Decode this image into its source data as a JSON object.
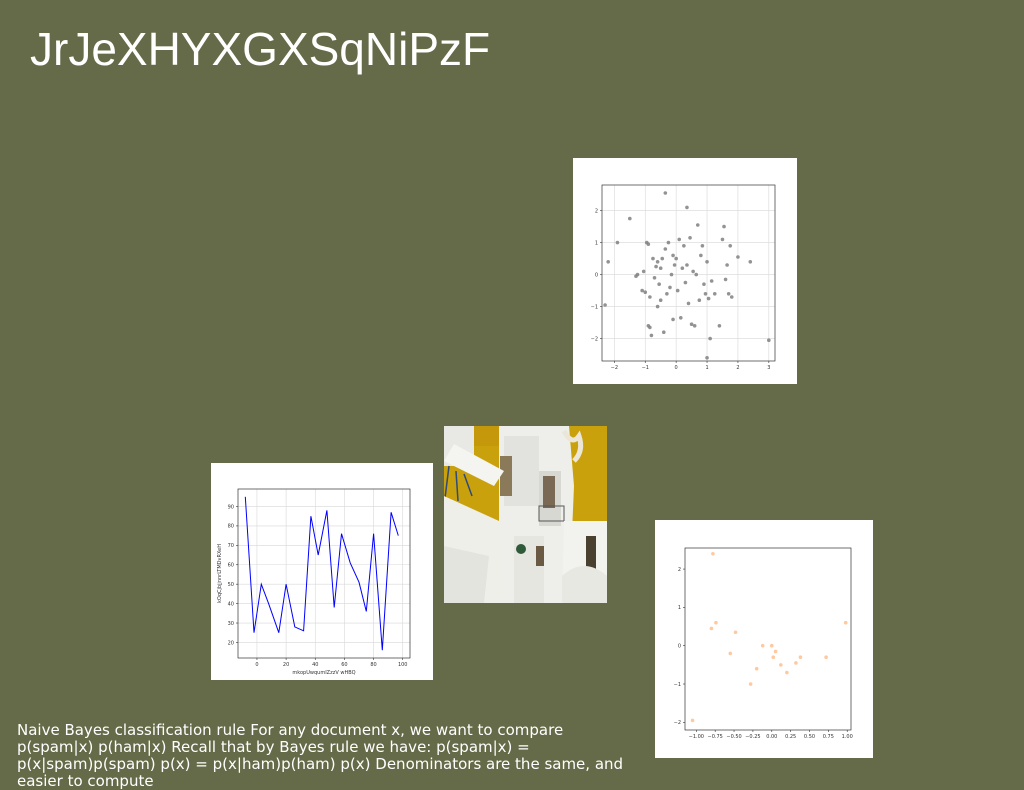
{
  "slide": {
    "title": "JrJeXHYXGXSqNiPzF",
    "body": "Naive Bayes classification rule For any document x, we want to compare p(spam|x) p(ham|x) Recall that by Bayes rule we have: p(spam|x) = p(x|spam)p(spam) p(x) = p(x|ham)p(ham) p(x) Denominators are the same, and easier to compute"
  },
  "chart_data": [
    {
      "type": "scatter",
      "color": "#808080",
      "xlim": [
        -2.4,
        3.2
      ],
      "ylim": [
        -2.7,
        2.8
      ],
      "xticks": [
        "−2",
        "−1",
        "0",
        "1",
        "2",
        "3"
      ],
      "yticks": [
        "−2",
        "−1",
        "0",
        "1",
        "2"
      ],
      "grid": true,
      "points": [
        [
          -2.3,
          -0.95
        ],
        [
          -2.2,
          0.4
        ],
        [
          -1.9,
          1.0
        ],
        [
          -1.5,
          1.75
        ],
        [
          -1.3,
          -0.05
        ],
        [
          -1.25,
          0.0
        ],
        [
          -1.1,
          -0.5
        ],
        [
          -1.05,
          0.1
        ],
        [
          -1.0,
          -0.55
        ],
        [
          -0.95,
          1.0
        ],
        [
          -0.9,
          0.95
        ],
        [
          -0.85,
          -0.7
        ],
        [
          -0.9,
          -1.6
        ],
        [
          -0.85,
          -1.65
        ],
        [
          -0.8,
          -1.9
        ],
        [
          -0.75,
          0.5
        ],
        [
          -0.7,
          -0.1
        ],
        [
          -0.65,
          0.25
        ],
        [
          -0.6,
          0.4
        ],
        [
          -0.6,
          -1.0
        ],
        [
          -0.55,
          -0.3
        ],
        [
          -0.5,
          0.2
        ],
        [
          -0.5,
          -0.8
        ],
        [
          -0.45,
          0.5
        ],
        [
          -0.4,
          -1.8
        ],
        [
          -0.35,
          0.8
        ],
        [
          -0.3,
          -0.6
        ],
        [
          -0.25,
          1.0
        ],
        [
          -0.2,
          -0.4
        ],
        [
          -0.15,
          0.0
        ],
        [
          -0.1,
          0.6
        ],
        [
          -0.1,
          -1.4
        ],
        [
          -0.05,
          0.3
        ],
        [
          0.0,
          0.5
        ],
        [
          0.05,
          -0.5
        ],
        [
          0.1,
          1.1
        ],
        [
          0.15,
          -1.35
        ],
        [
          0.2,
          0.2
        ],
        [
          0.25,
          0.9
        ],
        [
          0.3,
          -0.25
        ],
        [
          0.35,
          0.3
        ],
        [
          0.4,
          -0.9
        ],
        [
          0.45,
          1.15
        ],
        [
          0.5,
          -1.55
        ],
        [
          0.55,
          0.1
        ],
        [
          0.6,
          -1.6
        ],
        [
          0.65,
          0.0
        ],
        [
          0.7,
          1.55
        ],
        [
          0.75,
          -0.8
        ],
        [
          0.8,
          0.6
        ],
        [
          0.85,
          0.9
        ],
        [
          0.9,
          -0.3
        ],
        [
          0.95,
          -0.6
        ],
        [
          1.0,
          0.4
        ],
        [
          1.05,
          -0.75
        ],
        [
          1.1,
          -2.0
        ],
        [
          1.0,
          -2.6
        ],
        [
          1.15,
          -0.2
        ],
        [
          1.25,
          -0.6
        ],
        [
          1.4,
          -1.6
        ],
        [
          1.5,
          1.1
        ],
        [
          1.55,
          1.5
        ],
        [
          1.6,
          -0.15
        ],
        [
          1.65,
          0.3
        ],
        [
          1.7,
          -0.6
        ],
        [
          1.75,
          0.9
        ],
        [
          1.8,
          -0.7
        ],
        [
          2.0,
          0.55
        ],
        [
          2.4,
          0.4
        ],
        [
          3.0,
          -2.05
        ],
        [
          -0.35,
          2.55
        ],
        [
          0.35,
          2.1
        ]
      ]
    },
    {
      "type": "line",
      "color": "#0000ff",
      "xlabel": "mkopUwqumIZzzV wHBQ",
      "ylabel": "kOqCjbjjnnrLTMDvRXeH",
      "xlim": [
        -13,
        105
      ],
      "ylim": [
        12,
        99
      ],
      "xticks": [
        0,
        20,
        40,
        60,
        80,
        100
      ],
      "yticks": [
        20,
        30,
        40,
        50,
        60,
        70,
        80,
        90
      ],
      "grid": true,
      "x": [
        -8,
        -2,
        3,
        8,
        15,
        20,
        26,
        32,
        37,
        42,
        48,
        53,
        58,
        64,
        70,
        75,
        80,
        86,
        92,
        97
      ],
      "y": [
        95,
        25,
        50,
        40,
        25,
        50,
        28,
        26,
        85,
        65,
        88,
        38,
        76,
        61,
        51,
        36,
        76,
        16,
        87,
        75
      ]
    },
    {
      "type": "scatter",
      "color": "#ffc08f",
      "xlim": [
        -1.15,
        1.05
      ],
      "ylim": [
        -2.2,
        2.55
      ],
      "xticks": [
        "−1.00",
        "−0.75",
        "−0.50",
        "−0.25",
        "0.00",
        "0.25",
        "0.50",
        "0.75",
        "1.00"
      ],
      "yticks": [
        "−2",
        "−1",
        "0",
        "1",
        "2"
      ],
      "grid": false,
      "points": [
        [
          -1.05,
          -1.95
        ],
        [
          -0.78,
          2.4
        ],
        [
          -0.8,
          0.45
        ],
        [
          -0.74,
          0.6
        ],
        [
          -0.55,
          -0.2
        ],
        [
          -0.48,
          0.35
        ],
        [
          -0.28,
          -1.0
        ],
        [
          -0.2,
          -0.6
        ],
        [
          -0.12,
          0.0
        ],
        [
          0.0,
          0.0
        ],
        [
          0.02,
          -0.3
        ],
        [
          0.05,
          -0.15
        ],
        [
          0.12,
          -0.5
        ],
        [
          0.2,
          -0.7
        ],
        [
          0.32,
          -0.45
        ],
        [
          0.38,
          -0.3
        ],
        [
          0.72,
          -0.3
        ],
        [
          0.98,
          0.6
        ]
      ]
    }
  ]
}
